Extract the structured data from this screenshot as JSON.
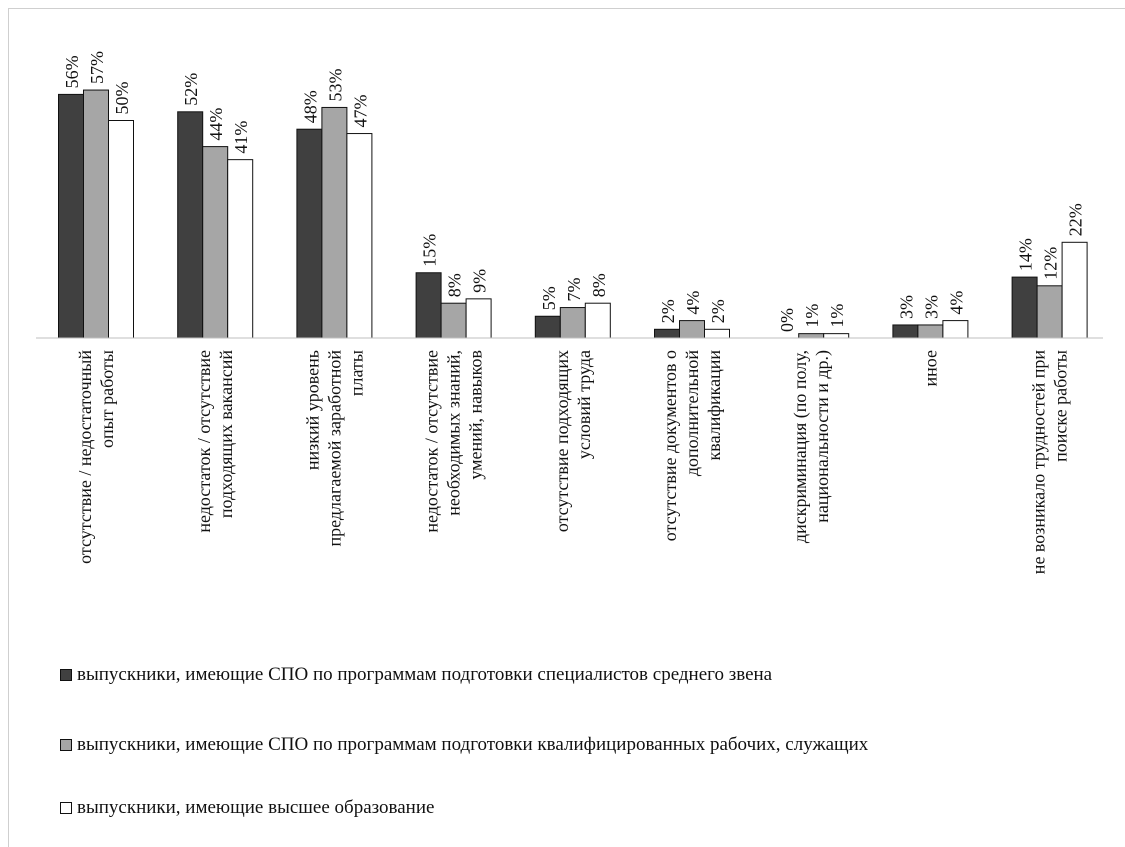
{
  "chart_data": {
    "type": "bar",
    "categories": [
      [
        "отсутствие / недостаточный",
        "опыт работы"
      ],
      [
        "недостаток / отсутствие",
        "подходящих вакансий"
      ],
      [
        "низкий уровень",
        "предлагаемой заработной",
        "платы"
      ],
      [
        "недостаток / отсутствие",
        "необходимых знаний,",
        "умений, навыков"
      ],
      [
        "отсутствие подходящих",
        "условий труда"
      ],
      [
        "отсутствие документов о",
        "дополнительной",
        "квалификации"
      ],
      [
        "дискриминация (по полу,",
        "национальности и др.)"
      ],
      [
        "иное"
      ],
      [
        "не возникало трудностей при",
        "поиске работы"
      ]
    ],
    "series": [
      {
        "name": "выпускники, имеющие СПО по программам подготовки специалистов среднего звена",
        "color": "#404040",
        "values": [
          56,
          52,
          48,
          15,
          5,
          2,
          0,
          3,
          14
        ]
      },
      {
        "name": "выпускники, имеющие СПО по программам подготовки квалифицированных рабочих, служащих",
        "color": "#a6a6a6",
        "values": [
          57,
          44,
          53,
          8,
          7,
          4,
          1,
          3,
          12
        ]
      },
      {
        "name": "выпускники, имеющие высшее образование",
        "color": "#ffffff",
        "values": [
          50,
          41,
          47,
          9,
          8,
          2,
          1,
          4,
          22
        ]
      }
    ],
    "value_suffix": "%",
    "ylim": [
      0,
      60
    ],
    "grid": false,
    "legend_position": "bottom"
  }
}
